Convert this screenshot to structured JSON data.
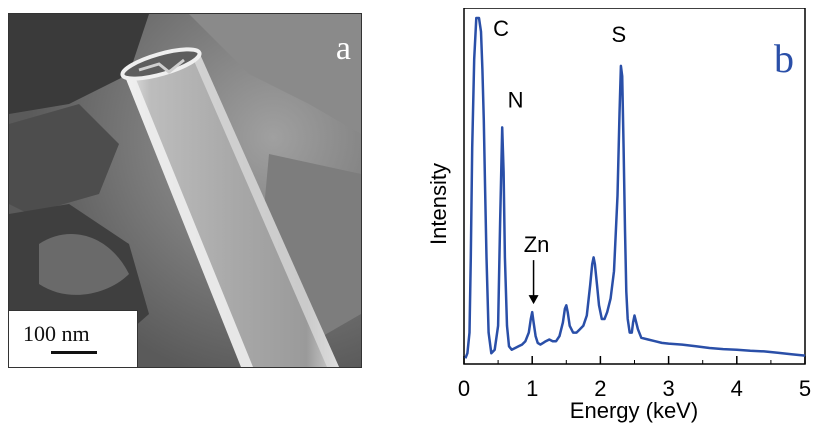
{
  "panel_a": {
    "label": "a",
    "scale_bar_text": "100 nm"
  },
  "panel_b": {
    "label": "b",
    "accent_color": "#2a4fa8"
  },
  "chart_data": {
    "type": "line",
    "title": "",
    "xlabel": "Energy (keV)",
    "ylabel": "Intensity",
    "xlim": [
      0,
      5
    ],
    "ylim": [
      0,
      100
    ],
    "xticks": [
      0,
      1,
      2,
      3,
      4,
      5
    ],
    "grid": false,
    "series": [
      {
        "color": "#2a4fa8",
        "x": [
          0.02,
          0.05,
          0.08,
          0.1,
          0.12,
          0.15,
          0.18,
          0.2,
          0.22,
          0.25,
          0.27,
          0.29,
          0.31,
          0.33,
          0.36,
          0.4,
          0.45,
          0.5,
          0.53,
          0.56,
          0.58,
          0.6,
          0.63,
          0.66,
          0.7,
          0.75,
          0.8,
          0.85,
          0.9,
          0.95,
          0.98,
          1.0,
          1.02,
          1.05,
          1.08,
          1.12,
          1.16,
          1.2,
          1.25,
          1.3,
          1.35,
          1.4,
          1.45,
          1.48,
          1.5,
          1.52,
          1.55,
          1.6,
          1.65,
          1.7,
          1.75,
          1.8,
          1.85,
          1.88,
          1.9,
          1.92,
          1.95,
          1.98,
          2.02,
          2.06,
          2.1,
          2.15,
          2.2,
          2.25,
          2.28,
          2.3,
          2.32,
          2.34,
          2.36,
          2.38,
          2.4,
          2.43,
          2.46,
          2.48,
          2.5,
          2.55,
          2.6,
          2.7,
          2.8,
          2.9,
          3.0,
          3.2,
          3.4,
          3.6,
          3.8,
          4.0,
          4.2,
          4.4,
          4.6,
          4.8,
          5.0
        ],
        "y": [
          0.5,
          2,
          8,
          30,
          62,
          88,
          100,
          100,
          100,
          96,
          85,
          70,
          50,
          30,
          8,
          2,
          3,
          10,
          40,
          68,
          55,
          30,
          10,
          4,
          3,
          3.5,
          4,
          4.5,
          5.5,
          8,
          12,
          14,
          11,
          7,
          5,
          4.5,
          5,
          5.5,
          6,
          5.5,
          5.5,
          7,
          11,
          15,
          16,
          14,
          10,
          8,
          8,
          9,
          10,
          13,
          22,
          28,
          30,
          28,
          22,
          16,
          12,
          12,
          14,
          18,
          26,
          48,
          72,
          86,
          83,
          62,
          38,
          20,
          12,
          8,
          8,
          11,
          13,
          9,
          6.5,
          6,
          5.5,
          5,
          4.8,
          4.5,
          4,
          3.5,
          3.2,
          3,
          2.7,
          2.5,
          2.1,
          1.7,
          1.3
        ]
      }
    ],
    "annotations": [
      {
        "text": "C",
        "x": 0.28,
        "y": 100
      },
      {
        "text": "N",
        "x": 0.55,
        "y": 68
      },
      {
        "text": "Zn",
        "x": 1.02,
        "y": 14,
        "arrow": true
      },
      {
        "text": "S",
        "x": 2.3,
        "y": 86
      }
    ]
  }
}
